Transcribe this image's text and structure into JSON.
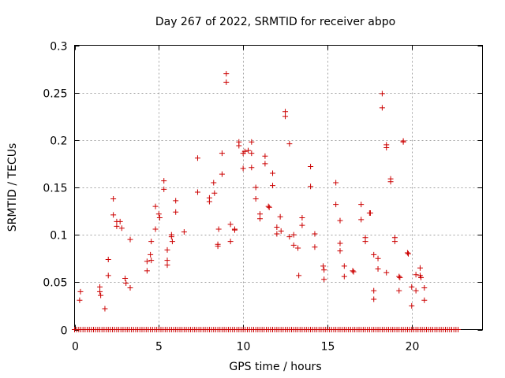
{
  "chart_data": {
    "type": "scatter",
    "title": "Day 267 of 2022, SRMTID for receiver abpo",
    "xlabel": "GPS time / hours",
    "ylabel": "SRMTID / TECUs",
    "xlim": [
      0,
      24.2
    ],
    "ylim": [
      0,
      0.3
    ],
    "grid": true,
    "marker": "+",
    "marker_color": "#cc0000",
    "xticks": [
      0,
      5,
      10,
      15,
      20
    ],
    "xtick_labels": [
      "0",
      "5",
      "10",
      "15",
      "20"
    ],
    "yticks": [
      0,
      0.05,
      0.1,
      0.15,
      0.2,
      0.25,
      0.3
    ],
    "ytick_labels": [
      "0",
      "0.05",
      "0.1",
      "0.15",
      "0.2",
      "0.25",
      "0.3"
    ],
    "zero_series": {
      "x_start": 0,
      "x_end": 22.75,
      "x_step": 0.125,
      "y": 0
    },
    "series": [
      {
        "name": "SRMTID",
        "points": [
          [
            0.3,
            0.031
          ],
          [
            0.35,
            0.04
          ],
          [
            1.5,
            0.045
          ],
          [
            1.5,
            0.04
          ],
          [
            1.55,
            0.036
          ],
          [
            1.8,
            0.022
          ],
          [
            2.0,
            0.074
          ],
          [
            2.0,
            0.057
          ],
          [
            2.3,
            0.138
          ],
          [
            2.3,
            0.121
          ],
          [
            2.5,
            0.114
          ],
          [
            2.5,
            0.109
          ],
          [
            2.7,
            0.114
          ],
          [
            2.8,
            0.107
          ],
          [
            3.0,
            0.054
          ],
          [
            3.05,
            0.049
          ],
          [
            3.3,
            0.044
          ],
          [
            3.3,
            0.095
          ],
          [
            4.3,
            0.072
          ],
          [
            4.3,
            0.062
          ],
          [
            4.5,
            0.079
          ],
          [
            4.55,
            0.073
          ],
          [
            4.55,
            0.093
          ],
          [
            4.8,
            0.13
          ],
          [
            4.8,
            0.106
          ],
          [
            5.0,
            0.122
          ],
          [
            5.05,
            0.118
          ],
          [
            5.3,
            0.157
          ],
          [
            5.3,
            0.148
          ],
          [
            5.5,
            0.084
          ],
          [
            5.5,
            0.073
          ],
          [
            5.5,
            0.068
          ],
          [
            5.75,
            0.1
          ],
          [
            5.75,
            0.098
          ],
          [
            5.8,
            0.093
          ],
          [
            6.0,
            0.136
          ],
          [
            6.0,
            0.124
          ],
          [
            6.5,
            0.103
          ],
          [
            7.3,
            0.181
          ],
          [
            7.3,
            0.145
          ],
          [
            8.0,
            0.139
          ],
          [
            8.0,
            0.135
          ],
          [
            8.25,
            0.155
          ],
          [
            8.3,
            0.144
          ],
          [
            8.5,
            0.09
          ],
          [
            8.5,
            0.088
          ],
          [
            8.55,
            0.106
          ],
          [
            8.75,
            0.186
          ],
          [
            8.75,
            0.164
          ],
          [
            9.0,
            0.27
          ],
          [
            9.0,
            0.261
          ],
          [
            9.25,
            0.111
          ],
          [
            9.25,
            0.093
          ],
          [
            9.5,
            0.106
          ],
          [
            9.5,
            0.105
          ],
          [
            9.75,
            0.198
          ],
          [
            9.75,
            0.194
          ],
          [
            10.0,
            0.186
          ],
          [
            10.0,
            0.17
          ],
          [
            10.1,
            0.188
          ],
          [
            10.3,
            0.189
          ],
          [
            10.5,
            0.198
          ],
          [
            10.5,
            0.186
          ],
          [
            10.5,
            0.171
          ],
          [
            10.75,
            0.15
          ],
          [
            10.75,
            0.138
          ],
          [
            11.0,
            0.122
          ],
          [
            11.0,
            0.117
          ],
          [
            11.3,
            0.183
          ],
          [
            11.3,
            0.175
          ],
          [
            11.5,
            0.13
          ],
          [
            11.55,
            0.129
          ],
          [
            11.75,
            0.165
          ],
          [
            11.75,
            0.152
          ],
          [
            12.0,
            0.108
          ],
          [
            12.0,
            0.101
          ],
          [
            12.2,
            0.119
          ],
          [
            12.25,
            0.104
          ],
          [
            12.5,
            0.23
          ],
          [
            12.5,
            0.225
          ],
          [
            12.75,
            0.196
          ],
          [
            12.75,
            0.098
          ],
          [
            13.0,
            0.1
          ],
          [
            13.0,
            0.089
          ],
          [
            13.25,
            0.086
          ],
          [
            13.3,
            0.057
          ],
          [
            13.5,
            0.118
          ],
          [
            13.5,
            0.11
          ],
          [
            14.0,
            0.172
          ],
          [
            14.0,
            0.151
          ],
          [
            14.25,
            0.101
          ],
          [
            14.25,
            0.087
          ],
          [
            14.75,
            0.067
          ],
          [
            14.8,
            0.063
          ],
          [
            14.8,
            0.053
          ],
          [
            15.5,
            0.155
          ],
          [
            15.5,
            0.132
          ],
          [
            15.75,
            0.115
          ],
          [
            15.75,
            0.091
          ],
          [
            15.75,
            0.083
          ],
          [
            16.0,
            0.067
          ],
          [
            16.0,
            0.056
          ],
          [
            16.5,
            0.062
          ],
          [
            16.55,
            0.061
          ],
          [
            17.0,
            0.132
          ],
          [
            17.0,
            0.116
          ],
          [
            17.25,
            0.097
          ],
          [
            17.25,
            0.093
          ],
          [
            17.5,
            0.123
          ],
          [
            17.55,
            0.123
          ],
          [
            17.75,
            0.079
          ],
          [
            17.75,
            0.041
          ],
          [
            17.75,
            0.032
          ],
          [
            18.0,
            0.075
          ],
          [
            18.0,
            0.064
          ],
          [
            18.25,
            0.249
          ],
          [
            18.25,
            0.234
          ],
          [
            18.5,
            0.195
          ],
          [
            18.5,
            0.192
          ],
          [
            18.5,
            0.06
          ],
          [
            18.75,
            0.159
          ],
          [
            18.75,
            0.156
          ],
          [
            19.0,
            0.097
          ],
          [
            19.0,
            0.093
          ],
          [
            19.25,
            0.056
          ],
          [
            19.3,
            0.055
          ],
          [
            19.25,
            0.041
          ],
          [
            19.5,
            0.199
          ],
          [
            19.5,
            0.198
          ],
          [
            19.75,
            0.081
          ],
          [
            19.8,
            0.08
          ],
          [
            20.0,
            0.045
          ],
          [
            20.0,
            0.025
          ],
          [
            20.25,
            0.058
          ],
          [
            20.25,
            0.041
          ],
          [
            20.5,
            0.065
          ],
          [
            20.5,
            0.057
          ],
          [
            20.55,
            0.055
          ],
          [
            20.75,
            0.044
          ],
          [
            20.75,
            0.031
          ]
        ]
      }
    ]
  }
}
